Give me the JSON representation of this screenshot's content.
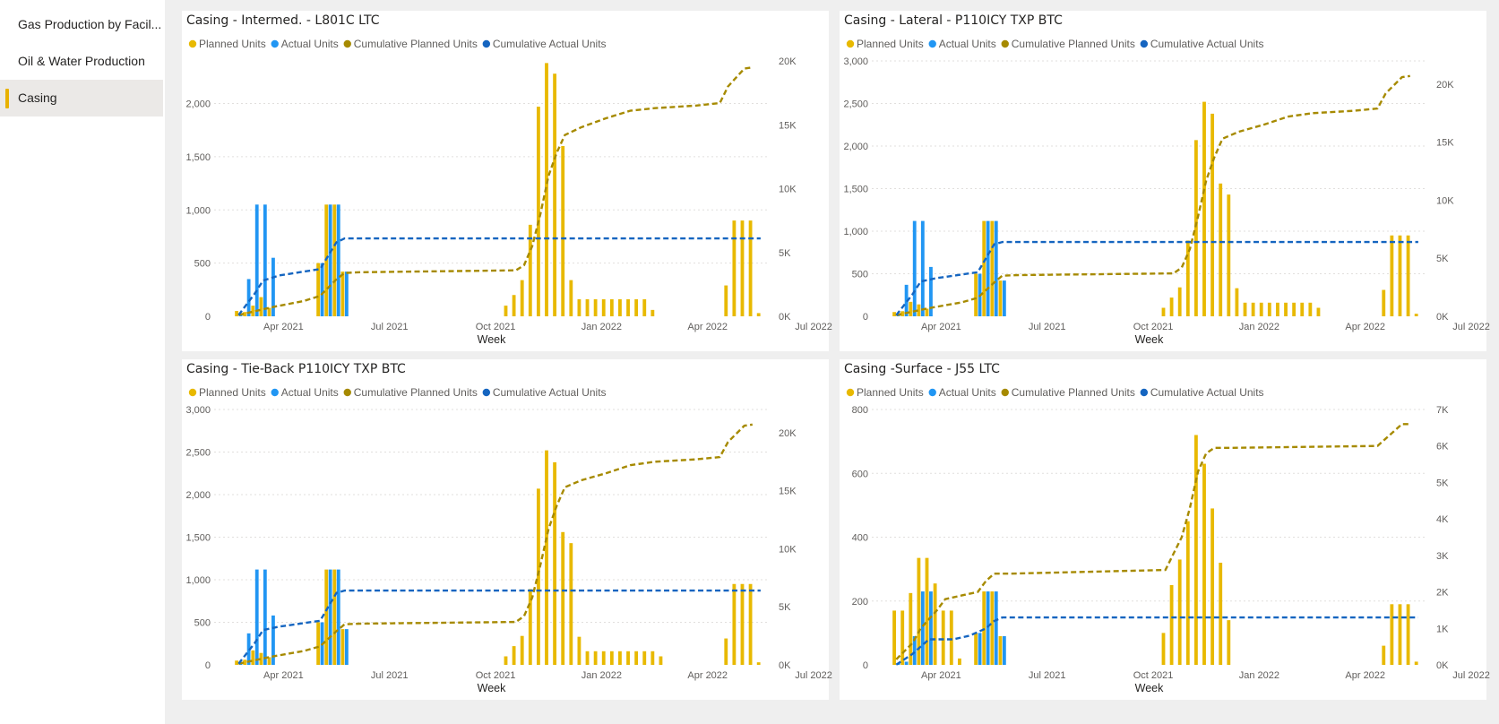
{
  "sidebar": {
    "items": [
      {
        "label": "Gas Production by Facil...",
        "selected": false
      },
      {
        "label": "Oil & Water Production",
        "selected": false
      },
      {
        "label": "Casing",
        "selected": true
      }
    ],
    "accent": "#e8b100"
  },
  "colors": {
    "planned": "#e8b900",
    "actual": "#2196f3",
    "cum_planned": "#a68a00",
    "cum_actual": "#1565c0"
  },
  "chart_data": [
    {
      "type": "bar",
      "title": "Casing - Intermed. - L801C LTC",
      "xlabel": "Week",
      "legend": [
        "Planned Units",
        "Actual Units",
        "Cumulative Planned Units",
        "Cumulative Actual Units"
      ],
      "x_ticks": [
        "Apr 2021",
        "Jul 2021",
        "Oct 2021",
        "Jan 2022",
        "Apr 2022",
        "Jul 2022"
      ],
      "y_ticks": [
        "0",
        "500",
        "1,000",
        "1,500",
        "2,000"
      ],
      "y2_ticks": [
        "0K",
        "5K",
        "10K",
        "15K",
        "20K"
      ],
      "ylim": [
        0,
        2400
      ],
      "y2lim": [
        0,
        20000
      ],
      "planned": [
        [
          0,
          50
        ],
        [
          1,
          40
        ],
        [
          2,
          100
        ],
        [
          3,
          180
        ],
        [
          4,
          80
        ],
        [
          10,
          500
        ],
        [
          11,
          1050
        ],
        [
          12,
          1050
        ],
        [
          13,
          420
        ],
        [
          33,
          100
        ],
        [
          34,
          200
        ],
        [
          35,
          340
        ],
        [
          36,
          860
        ],
        [
          37,
          1970
        ],
        [
          38,
          2380
        ],
        [
          39,
          2280
        ],
        [
          40,
          1600
        ],
        [
          41,
          340
        ],
        [
          42,
          160
        ],
        [
          43,
          160
        ],
        [
          44,
          160
        ],
        [
          45,
          160
        ],
        [
          46,
          160
        ],
        [
          47,
          160
        ],
        [
          48,
          160
        ],
        [
          49,
          160
        ],
        [
          50,
          160
        ],
        [
          51,
          60
        ],
        [
          60,
          290
        ],
        [
          61,
          900
        ],
        [
          62,
          900
        ],
        [
          63,
          900
        ],
        [
          64,
          30
        ]
      ],
      "actual": [
        [
          0,
          20
        ],
        [
          1,
          350
        ],
        [
          2,
          1050
        ],
        [
          3,
          1050
        ],
        [
          4,
          550
        ],
        [
          10,
          500
        ],
        [
          11,
          1050
        ],
        [
          12,
          1050
        ],
        [
          13,
          420
        ]
      ],
      "cum_planned": [
        [
          0,
          100
        ],
        [
          2,
          400
        ],
        [
          4,
          700
        ],
        [
          8,
          1200
        ],
        [
          10,
          1600
        ],
        [
          12,
          2900
        ],
        [
          13,
          3400
        ],
        [
          15,
          3450
        ],
        [
          34,
          3600
        ],
        [
          35,
          4000
        ],
        [
          36,
          5500
        ],
        [
          37,
          8000
        ],
        [
          38,
          11000
        ],
        [
          39,
          12800
        ],
        [
          40,
          14200
        ],
        [
          42,
          14800
        ],
        [
          45,
          15500
        ],
        [
          48,
          16100
        ],
        [
          51,
          16300
        ],
        [
          56,
          16500
        ],
        [
          59,
          16700
        ],
        [
          60,
          18000
        ],
        [
          62,
          19400
        ],
        [
          63,
          19500
        ]
      ],
      "cum_actual": [
        [
          0,
          100
        ],
        [
          2,
          1800
        ],
        [
          3,
          2800
        ],
        [
          5,
          3200
        ],
        [
          8,
          3500
        ],
        [
          10,
          3700
        ],
        [
          12,
          5800
        ],
        [
          13,
          6100
        ],
        [
          64,
          6100
        ]
      ]
    },
    {
      "type": "bar",
      "title": "Casing - Lateral - P110ICY TXP BTC",
      "xlabel": "Week",
      "legend": [
        "Planned Units",
        "Actual Units",
        "Cumulative Planned Units",
        "Cumulative Actual Units"
      ],
      "x_ticks": [
        "Apr 2021",
        "Jul 2021",
        "Oct 2021",
        "Jan 2022",
        "Apr 2022",
        "Jul 2022"
      ],
      "y_ticks": [
        "0",
        "500",
        "1,000",
        "1,500",
        "2,000",
        "2,500",
        "3,000"
      ],
      "y2_ticks": [
        "0K",
        "5K",
        "10K",
        "15K",
        "20K"
      ],
      "ylim": [
        0,
        3000
      ],
      "y2lim": [
        0,
        22000
      ],
      "planned": [
        [
          0,
          50
        ],
        [
          1,
          60
        ],
        [
          2,
          170
        ],
        [
          3,
          140
        ],
        [
          4,
          90
        ],
        [
          10,
          500
        ],
        [
          11,
          1120
        ],
        [
          12,
          1120
        ],
        [
          13,
          420
        ],
        [
          33,
          100
        ],
        [
          34,
          220
        ],
        [
          35,
          340
        ],
        [
          36,
          890
        ],
        [
          37,
          2070
        ],
        [
          38,
          2520
        ],
        [
          39,
          2380
        ],
        [
          40,
          1560
        ],
        [
          41,
          1430
        ],
        [
          42,
          330
        ],
        [
          43,
          160
        ],
        [
          44,
          160
        ],
        [
          45,
          160
        ],
        [
          46,
          160
        ],
        [
          47,
          160
        ],
        [
          48,
          160
        ],
        [
          49,
          160
        ],
        [
          50,
          160
        ],
        [
          51,
          160
        ],
        [
          52,
          100
        ],
        [
          60,
          310
        ],
        [
          61,
          950
        ],
        [
          62,
          950
        ],
        [
          63,
          950
        ],
        [
          64,
          30
        ]
      ],
      "actual": [
        [
          0,
          20
        ],
        [
          1,
          370
        ],
        [
          2,
          1120
        ],
        [
          3,
          1120
        ],
        [
          4,
          580
        ],
        [
          10,
          500
        ],
        [
          11,
          1120
        ],
        [
          12,
          1120
        ],
        [
          13,
          420
        ]
      ],
      "cum_planned": [
        [
          0,
          100
        ],
        [
          2,
          400
        ],
        [
          4,
          700
        ],
        [
          8,
          1200
        ],
        [
          10,
          1600
        ],
        [
          12,
          2900
        ],
        [
          13,
          3500
        ],
        [
          15,
          3550
        ],
        [
          34,
          3700
        ],
        [
          35,
          4200
        ],
        [
          36,
          5800
        ],
        [
          37,
          8600
        ],
        [
          38,
          11700
        ],
        [
          39,
          13700
        ],
        [
          40,
          15300
        ],
        [
          42,
          15900
        ],
        [
          45,
          16500
        ],
        [
          48,
          17200
        ],
        [
          51,
          17500
        ],
        [
          56,
          17700
        ],
        [
          59,
          17900
        ],
        [
          60,
          19200
        ],
        [
          62,
          20600
        ],
        [
          63,
          20700
        ]
      ],
      "cum_actual": [
        [
          0,
          100
        ],
        [
          2,
          1900
        ],
        [
          3,
          3000
        ],
        [
          5,
          3300
        ],
        [
          8,
          3600
        ],
        [
          10,
          3800
        ],
        [
          12,
          6200
        ],
        [
          13,
          6400
        ],
        [
          64,
          6400
        ]
      ]
    },
    {
      "type": "bar",
      "title": "Casing - Tie-Back P110ICY TXP BTC",
      "xlabel": "Week",
      "legend": [
        "Planned Units",
        "Actual Units",
        "Cumulative Planned Units",
        "Cumulative Actual Units"
      ],
      "x_ticks": [
        "Apr 2021",
        "Jul 2021",
        "Oct 2021",
        "Jan 2022",
        "Apr 2022",
        "Jul 2022"
      ],
      "y_ticks": [
        "0",
        "500",
        "1,000",
        "1,500",
        "2,000",
        "2,500",
        "3,000"
      ],
      "y2_ticks": [
        "0K",
        "5K",
        "10K",
        "15K",
        "20K"
      ],
      "ylim": [
        0,
        3000
      ],
      "y2lim": [
        0,
        22000
      ],
      "planned": [
        [
          0,
          50
        ],
        [
          1,
          60
        ],
        [
          2,
          170
        ],
        [
          3,
          140
        ],
        [
          4,
          90
        ],
        [
          10,
          500
        ],
        [
          11,
          1120
        ],
        [
          12,
          1120
        ],
        [
          13,
          420
        ],
        [
          33,
          100
        ],
        [
          34,
          220
        ],
        [
          35,
          340
        ],
        [
          36,
          890
        ],
        [
          37,
          2070
        ],
        [
          38,
          2520
        ],
        [
          39,
          2380
        ],
        [
          40,
          1560
        ],
        [
          41,
          1430
        ],
        [
          42,
          330
        ],
        [
          43,
          160
        ],
        [
          44,
          160
        ],
        [
          45,
          160
        ],
        [
          46,
          160
        ],
        [
          47,
          160
        ],
        [
          48,
          160
        ],
        [
          49,
          160
        ],
        [
          50,
          160
        ],
        [
          51,
          160
        ],
        [
          52,
          100
        ],
        [
          60,
          310
        ],
        [
          61,
          950
        ],
        [
          62,
          950
        ],
        [
          63,
          950
        ],
        [
          64,
          30
        ]
      ],
      "actual": [
        [
          0,
          20
        ],
        [
          1,
          370
        ],
        [
          2,
          1120
        ],
        [
          3,
          1120
        ],
        [
          4,
          580
        ],
        [
          10,
          500
        ],
        [
          11,
          1120
        ],
        [
          12,
          1120
        ],
        [
          13,
          420
        ]
      ],
      "cum_planned": [
        [
          0,
          100
        ],
        [
          2,
          400
        ],
        [
          4,
          700
        ],
        [
          8,
          1200
        ],
        [
          10,
          1600
        ],
        [
          12,
          2900
        ],
        [
          13,
          3500
        ],
        [
          15,
          3550
        ],
        [
          34,
          3700
        ],
        [
          35,
          4200
        ],
        [
          36,
          5800
        ],
        [
          37,
          8600
        ],
        [
          38,
          11700
        ],
        [
          39,
          13700
        ],
        [
          40,
          15300
        ],
        [
          42,
          15900
        ],
        [
          45,
          16500
        ],
        [
          48,
          17200
        ],
        [
          51,
          17500
        ],
        [
          56,
          17700
        ],
        [
          59,
          17900
        ],
        [
          60,
          19200
        ],
        [
          62,
          20600
        ],
        [
          63,
          20700
        ]
      ],
      "cum_actual": [
        [
          0,
          100
        ],
        [
          2,
          1900
        ],
        [
          3,
          3000
        ],
        [
          5,
          3300
        ],
        [
          8,
          3600
        ],
        [
          10,
          3800
        ],
        [
          12,
          6200
        ],
        [
          13,
          6400
        ],
        [
          64,
          6400
        ]
      ]
    },
    {
      "type": "bar",
      "title": "Casing -Surface - J55 LTC",
      "xlabel": "Week",
      "legend": [
        "Planned Units",
        "Actual Units",
        "Cumulative Planned Units",
        "Cumulative Actual Units"
      ],
      "x_ticks": [
        "Apr 2021",
        "Jul 2021",
        "Oct 2021",
        "Jan 2022",
        "Apr 2022",
        "Jul 2022"
      ],
      "y_ticks": [
        "0",
        "200",
        "400",
        "600",
        "800"
      ],
      "y2_ticks": [
        "0K",
        "1K",
        "2K",
        "3K",
        "4K",
        "5K",
        "6K",
        "7K"
      ],
      "ylim": [
        0,
        800
      ],
      "y2lim": [
        0,
        7000
      ],
      "planned": [
        [
          0,
          170
        ],
        [
          1,
          170
        ],
        [
          2,
          225
        ],
        [
          3,
          335
        ],
        [
          4,
          335
        ],
        [
          5,
          255
        ],
        [
          6,
          170
        ],
        [
          7,
          170
        ],
        [
          8,
          20
        ],
        [
          10,
          100
        ],
        [
          11,
          230
        ],
        [
          12,
          230
        ],
        [
          13,
          90
        ],
        [
          33,
          100
        ],
        [
          34,
          250
        ],
        [
          35,
          330
        ],
        [
          36,
          450
        ],
        [
          37,
          720
        ],
        [
          38,
          630
        ],
        [
          39,
          490
        ],
        [
          40,
          320
        ],
        [
          41,
          140
        ],
        [
          60,
          60
        ],
        [
          61,
          190
        ],
        [
          62,
          190
        ],
        [
          63,
          190
        ],
        [
          64,
          10
        ]
      ],
      "actual": [
        [
          0,
          5
        ],
        [
          1,
          10
        ],
        [
          2,
          90
        ],
        [
          3,
          230
        ],
        [
          4,
          230
        ],
        [
          10,
          100
        ],
        [
          11,
          230
        ],
        [
          12,
          230
        ],
        [
          13,
          90
        ]
      ],
      "cum_planned": [
        [
          0,
          150
        ],
        [
          2,
          600
        ],
        [
          3,
          1000
        ],
        [
          5,
          1500
        ],
        [
          6,
          1800
        ],
        [
          8,
          1900
        ],
        [
          10,
          2000
        ],
        [
          11,
          2300
        ],
        [
          12,
          2500
        ],
        [
          14,
          2500
        ],
        [
          33,
          2600
        ],
        [
          35,
          3500
        ],
        [
          36,
          4300
        ],
        [
          37,
          5300
        ],
        [
          38,
          5800
        ],
        [
          39,
          5950
        ],
        [
          41,
          5950
        ],
        [
          59,
          6000
        ],
        [
          62,
          6600
        ],
        [
          63,
          6600
        ]
      ],
      "cum_actual": [
        [
          0,
          5
        ],
        [
          2,
          300
        ],
        [
          3,
          500
        ],
        [
          4,
          700
        ],
        [
          7,
          700
        ],
        [
          9,
          800
        ],
        [
          10,
          900
        ],
        [
          11,
          1000
        ],
        [
          12,
          1200
        ],
        [
          13,
          1300
        ],
        [
          64,
          1300
        ]
      ]
    }
  ]
}
